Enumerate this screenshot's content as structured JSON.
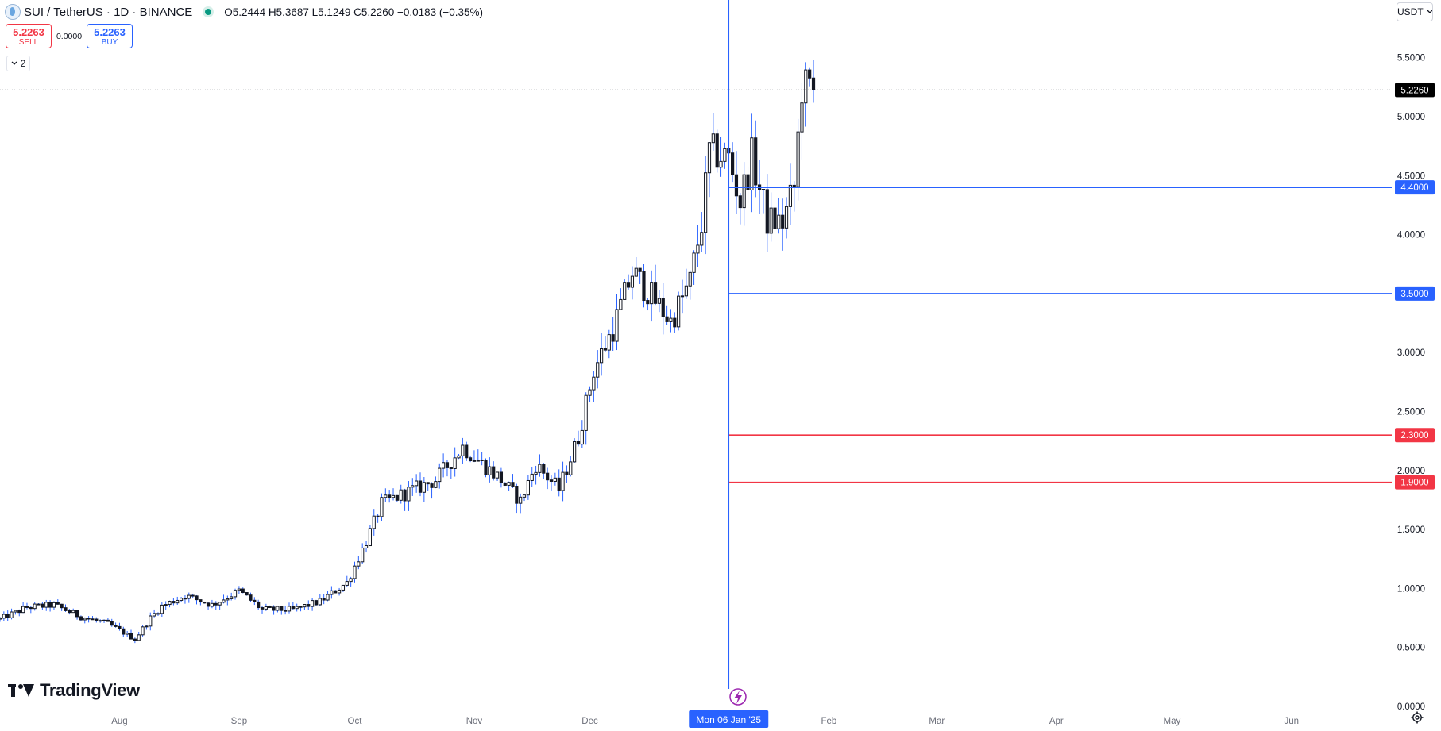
{
  "header": {
    "symbol": "SUI / TetherUS · 1D · BINANCE",
    "ohlc": "O5.2444 H5.3687 L5.1249 C5.2260 −0.0183 (−0.35%)",
    "status_color": "#089981",
    "logo_icon": "sui-logo-icon"
  },
  "trade": {
    "sell_price": "5.2263",
    "sell_label": "SELL",
    "spread": "0.0000",
    "buy_price": "5.2263",
    "buy_label": "BUY"
  },
  "indicators": {
    "count": "2",
    "toggle_icon": "chevron-down-icon"
  },
  "currency": {
    "label": "USDT",
    "icon": "chevron-down-icon"
  },
  "brand": {
    "name": "TradingView",
    "icon": "tradingview-logo-icon"
  },
  "settings_icon": "gear-icon",
  "chart_data": {
    "type": "candlestick",
    "symbol": "SUI / TetherUS",
    "interval": "1D",
    "exchange": "BINANCE",
    "ylim": [
      0,
      5.72
    ],
    "y_ticks": [
      "5.5000",
      "5.0000",
      "4.5000",
      "4.0000",
      "3.5000",
      "3.0000",
      "2.5000",
      "2.0000",
      "1.5000",
      "1.0000",
      "0.5000",
      "0.0000"
    ],
    "y_tick_values": [
      5.5,
      5.0,
      4.5,
      4.0,
      3.5,
      3.0,
      2.5,
      2.0,
      1.5,
      1.0,
      0.5,
      0.0
    ],
    "x_ticks": [
      "Aug",
      "Sep",
      "Oct",
      "Nov",
      "Dec",
      "Feb",
      "Mar",
      "Apr",
      "May",
      "Jun"
    ],
    "x_tick_dates": [
      "2024-08-01",
      "2024-09-01",
      "2024-10-01",
      "2024-11-01",
      "2024-12-01",
      "2025-02-01",
      "2025-03-01",
      "2025-04-01",
      "2025-05-01",
      "2025-06-01"
    ],
    "x_range": [
      "2024-07-01",
      "2025-06-27"
    ],
    "last_price": {
      "label": "5.2260",
      "value": 5.226,
      "color": "#000000"
    },
    "crosshair": {
      "date": "2025-01-06",
      "label": "Mon 06 Jan '25",
      "color": "#2962ff"
    },
    "horizontal_lines": [
      {
        "label": "4.4000",
        "value": 4.4,
        "color": "#2962ff"
      },
      {
        "label": "3.5000",
        "value": 3.5,
        "color": "#2962ff"
      },
      {
        "label": "2.3000",
        "value": 2.3,
        "color": "#f23645"
      },
      {
        "label": "1.9000",
        "value": 1.9,
        "color": "#f23645"
      }
    ],
    "wick_color": "#2962ff",
    "body_color": "#131722",
    "anchors": [
      [
        "2024-07-01",
        0.74
      ],
      [
        "2024-07-08",
        0.84
      ],
      [
        "2024-07-15",
        0.86
      ],
      [
        "2024-07-22",
        0.76
      ],
      [
        "2024-07-29",
        0.7
      ],
      [
        "2024-08-05",
        0.57
      ],
      [
        "2024-08-09",
        0.75
      ],
      [
        "2024-08-12",
        0.85
      ],
      [
        "2024-08-18",
        0.94
      ],
      [
        "2024-08-25",
        0.86
      ],
      [
        "2024-09-01",
        0.98
      ],
      [
        "2024-09-07",
        0.82
      ],
      [
        "2024-09-15",
        0.82
      ],
      [
        "2024-09-22",
        0.89
      ],
      [
        "2024-09-29",
        1.05
      ],
      [
        "2024-10-04",
        1.4
      ],
      [
        "2024-10-08",
        1.72
      ],
      [
        "2024-10-15",
        1.82
      ],
      [
        "2024-10-22",
        1.92
      ],
      [
        "2024-10-29",
        2.2
      ],
      [
        "2024-11-03",
        2.06
      ],
      [
        "2024-11-08",
        1.92
      ],
      [
        "2024-11-13",
        1.74
      ],
      [
        "2024-11-17",
        2.05
      ],
      [
        "2024-11-23",
        1.84
      ],
      [
        "2024-11-28",
        2.28
      ],
      [
        "2024-12-02",
        2.85
      ],
      [
        "2024-12-07",
        3.2
      ],
      [
        "2024-12-12",
        3.68
      ],
      [
        "2024-12-17",
        3.48
      ],
      [
        "2024-12-22",
        3.26
      ],
      [
        "2024-12-27",
        3.6
      ],
      [
        "2024-12-30",
        4.1
      ],
      [
        "2025-01-01",
        4.7
      ],
      [
        "2025-01-06",
        4.65
      ],
      [
        "2025-01-09",
        4.28
      ],
      [
        "2025-01-12",
        4.66
      ],
      [
        "2025-01-16",
        4.12
      ],
      [
        "2025-01-20",
        4.1
      ],
      [
        "2025-01-23",
        4.4
      ],
      [
        "2025-01-25",
        5.25
      ],
      [
        "2025-01-28",
        5.23
      ]
    ]
  }
}
